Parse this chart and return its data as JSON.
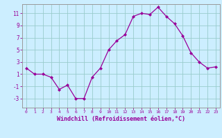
{
  "x": [
    0,
    1,
    2,
    3,
    4,
    5,
    6,
    7,
    8,
    9,
    10,
    11,
    12,
    13,
    14,
    15,
    16,
    17,
    18,
    19,
    20,
    21,
    22,
    23
  ],
  "y": [
    2,
    1,
    1,
    0.5,
    -1.5,
    -0.8,
    -3,
    -3,
    0.5,
    2,
    5,
    6.5,
    7.5,
    10.5,
    11,
    10.8,
    12,
    10.5,
    9.3,
    7.3,
    4.5,
    3,
    2,
    2.2
  ],
  "line_color": "#990099",
  "marker": "D",
  "marker_size": 2.0,
  "bg_color": "#cceeff",
  "grid_color": "#99cccc",
  "xlabel": "Windchill (Refroidissement éolien,°C)",
  "xlabel_fontsize": 6.0,
  "xtick_labels": [
    "0",
    "1",
    "2",
    "3",
    "4",
    "5",
    "6",
    "7",
    "8",
    "9",
    "10",
    "11",
    "12",
    "13",
    "14",
    "15",
    "16",
    "17",
    "18",
    "19",
    "20",
    "21",
    "22",
    "23"
  ],
  "ytick_labels": [
    "-3",
    "-1",
    "1",
    "3",
    "5",
    "7",
    "9",
    "11"
  ],
  "yticks": [
    -3,
    -1,
    1,
    3,
    5,
    7,
    9,
    11
  ],
  "ylim": [
    -4.5,
    12.5
  ],
  "xlim": [
    -0.5,
    23.5
  ],
  "tick_color": "#990099",
  "axis_color": "#999999",
  "font_family": "monospace"
}
